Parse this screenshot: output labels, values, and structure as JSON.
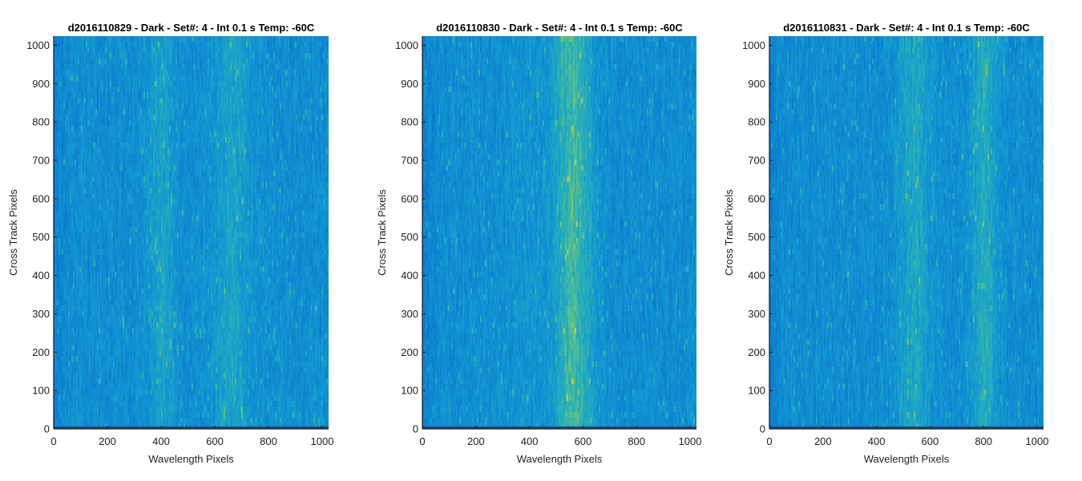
{
  "chart_data": [
    {
      "type": "heatmap",
      "title": "d2016110829 - Dark - Set#: 4 - Int 0.1 s Temp: -60C",
      "xlabel": "Wavelength Pixels",
      "ylabel": "Cross Track Pixels",
      "xlim": [
        0,
        1024
      ],
      "ylim": [
        0,
        1024
      ],
      "xticks": [
        0,
        200,
        400,
        600,
        800,
        1000
      ],
      "yticks": [
        0,
        100,
        200,
        300,
        400,
        500,
        600,
        700,
        800,
        900,
        1000
      ],
      "colormap": "parula",
      "pattern": "fine vertical streaks, brighter bands near 400 and 650 wavelength pixels"
    },
    {
      "type": "heatmap",
      "title": "d2016110830 - Dark - Set#: 4 - Int 0.1 s Temp: -60C",
      "xlabel": "Wavelength Pixels",
      "ylabel": "Cross Track Pixels",
      "xlim": [
        0,
        1024
      ],
      "ylim": [
        0,
        1024
      ],
      "xticks": [
        0,
        200,
        400,
        600,
        800,
        1000
      ],
      "yticks": [
        0,
        100,
        200,
        300,
        400,
        500,
        600,
        700,
        800,
        900,
        1000
      ],
      "colormap": "parula",
      "pattern": "fine vertical streaks, bright band centered near 560 wavelength pixels"
    },
    {
      "type": "heatmap",
      "title": "d2016110831 - Dark - Set#: 4 - Int 0.1 s Temp: -60C",
      "xlabel": "Wavelength Pixels",
      "ylabel": "Cross Track Pixels",
      "xlim": [
        0,
        1024
      ],
      "ylim": [
        0,
        1024
      ],
      "xticks": [
        0,
        200,
        400,
        600,
        800,
        1000
      ],
      "yticks": [
        0,
        100,
        200,
        300,
        400,
        500,
        600,
        700,
        800,
        900,
        1000
      ],
      "colormap": "parula",
      "pattern": "fine vertical streaks, brighter bands near 540 and 800 wavelength pixels"
    }
  ]
}
